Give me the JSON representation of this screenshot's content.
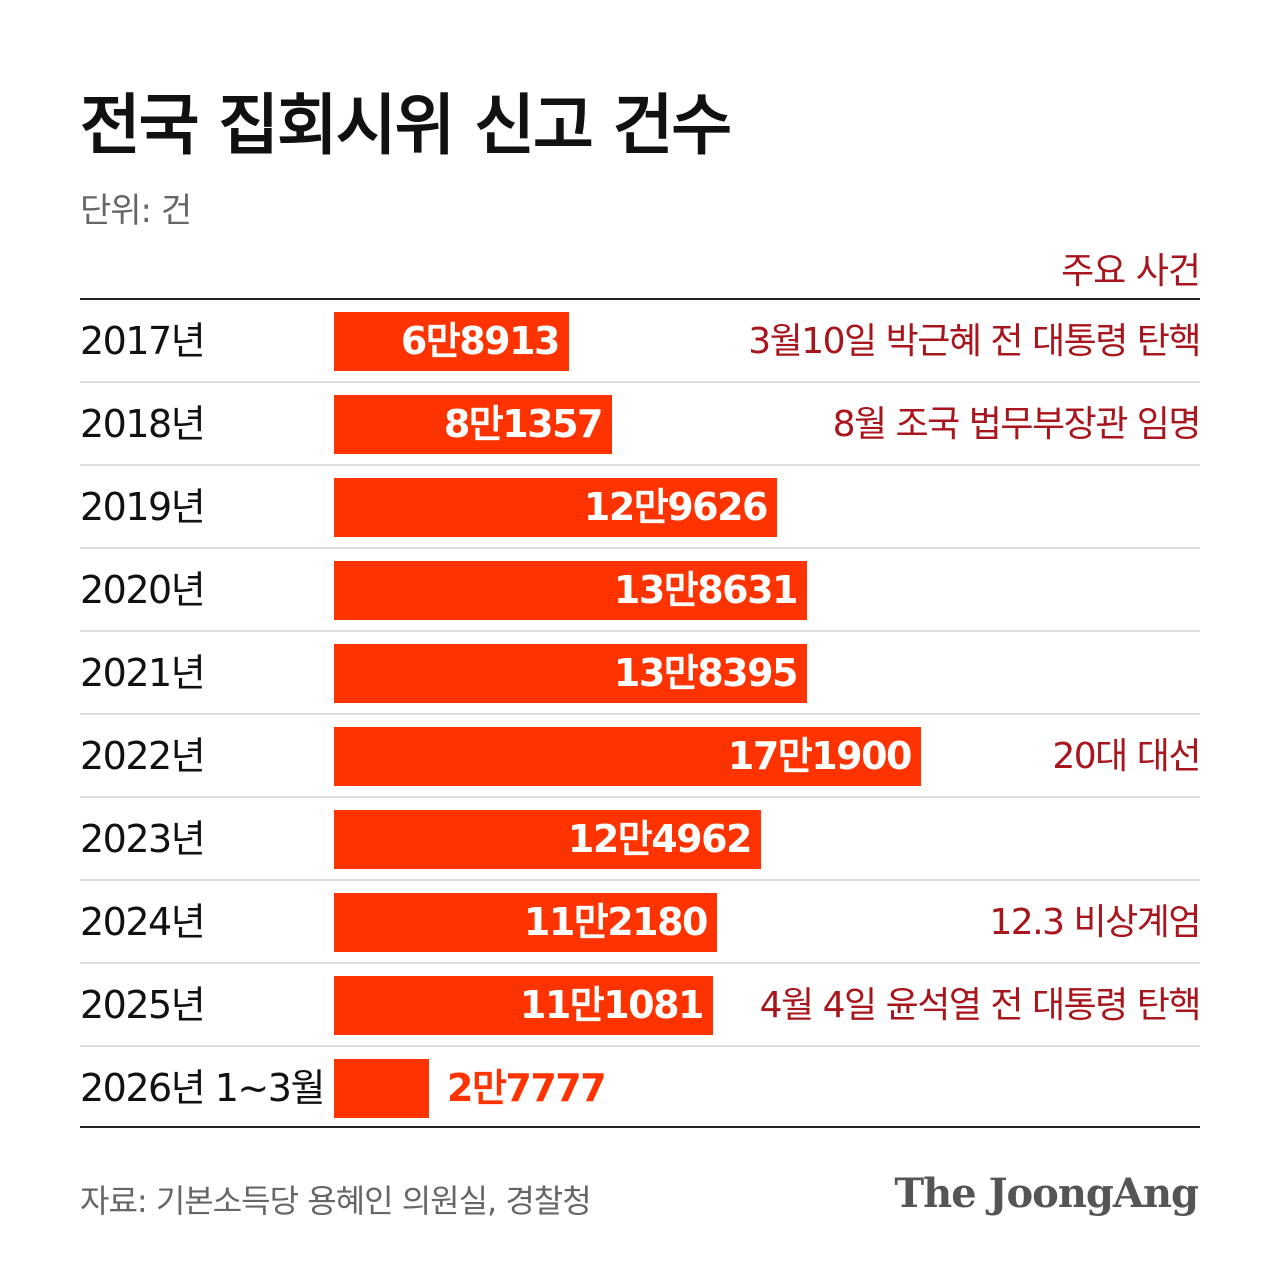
{
  "title": "전국 집회시위 신고 건수",
  "unit_label": "단위: 건",
  "events_header": "주요 사건",
  "source": "자료: 기본소득당 용혜인 의원실, 경찰청",
  "logo": "The JoongAng",
  "colors": {
    "bar": "#ff3300",
    "event_text": "#a8151c",
    "title": "#111111",
    "muted": "#666666"
  },
  "chart_data": {
    "type": "bar",
    "orientation": "horizontal",
    "title": "전국 집회시위 신고 건수",
    "unit": "건",
    "categories": [
      "2017년",
      "2018년",
      "2019년",
      "2020년",
      "2021년",
      "2022년",
      "2023년",
      "2024년",
      "2025년",
      "2026년 1~3월"
    ],
    "values": [
      68913,
      81357,
      129626,
      138631,
      138395,
      171900,
      124962,
      112180,
      111081,
      27777
    ],
    "value_labels": [
      "6만8913",
      "8만1357",
      "12만9626",
      "13만8631",
      "13만8395",
      "17만1900",
      "12만4962",
      "11만2180",
      "11만1081",
      "2만7777"
    ],
    "events": [
      "3월10일 박근혜 전 대통령 탄핵",
      "8월 조국 법무부장관 임명",
      "",
      "",
      "",
      "20대 대선",
      "",
      "12.3 비상계엄",
      "4월 4일 윤석열 전 대통령 탄핵",
      ""
    ],
    "xlim": [
      0,
      171900
    ],
    "grid": false,
    "legend": "none"
  }
}
